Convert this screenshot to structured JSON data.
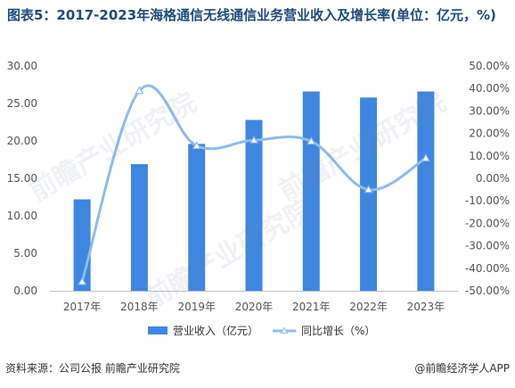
{
  "title": "图表5：2017-2023年海格通信无线通信业务营业收入及增长率(单位：亿元，%)",
  "footer": {
    "source": "资料来源：公司公报 前瞻产业研究院",
    "brand": "@前瞻经济学人APP"
  },
  "watermark": "前瞻产业研究院",
  "colors": {
    "bar": "#3f86e0",
    "line": "#8fbbec",
    "title": "#1e4a7c"
  },
  "chart_data": {
    "type": "bar",
    "categories": [
      "2017年",
      "2018年",
      "2019年",
      "2020年",
      "2021年",
      "2022年",
      "2023年"
    ],
    "series": [
      {
        "name": "营业收入（亿元）",
        "type": "bar",
        "axis": "left",
        "values": [
          12.2,
          16.9,
          19.6,
          22.8,
          26.6,
          25.8,
          26.6
        ]
      },
      {
        "name": "同比增长（%）",
        "type": "line",
        "axis": "right",
        "values": [
          -46.0,
          39.0,
          14.5,
          17.0,
          16.5,
          -5.0,
          9.0
        ]
      }
    ],
    "ylim_left": [
      0,
      30
    ],
    "yticks_left": [
      "0.00",
      "5.00",
      "10.00",
      "15.00",
      "20.00",
      "25.00",
      "30.00"
    ],
    "ylim_right": [
      -50,
      50
    ],
    "yticks_right": [
      "-50.00%",
      "-40.00%",
      "-30.00%",
      "-20.00%",
      "-10.00%",
      "0.00%",
      "10.00%",
      "20.00%",
      "30.00%",
      "40.00%",
      "50.00%"
    ],
    "grid": false,
    "legend": "bottom"
  }
}
